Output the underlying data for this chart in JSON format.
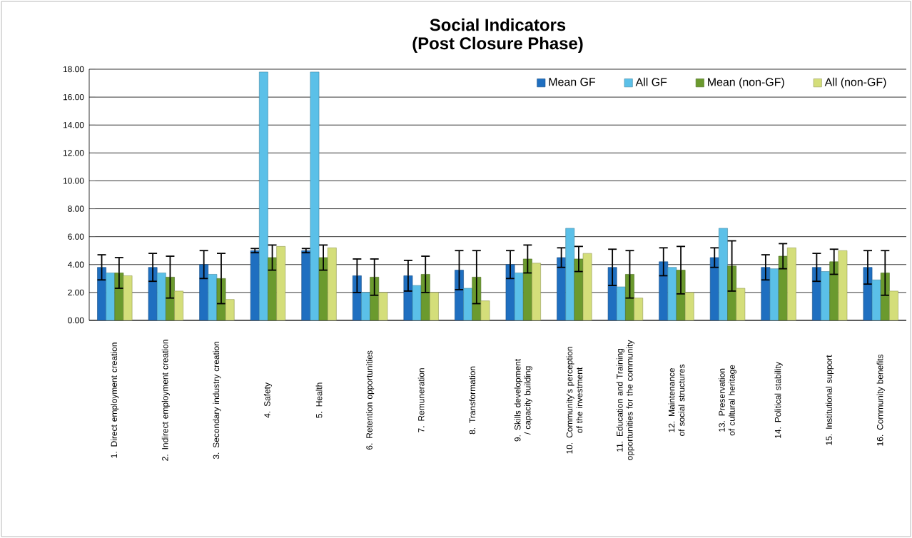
{
  "chart_data": {
    "type": "bar",
    "title": "Social Indicators\n(Post Closure Phase)",
    "categories": [
      "1. Direct employment creation",
      "2. Indirect employment creation",
      "3. Secondary industry creation",
      "4. Safety",
      "5. Health",
      "6. Retention opportunities",
      "7. Remuneration",
      "8. Transformation",
      "9. Skills development / capacity building",
      "10. Community's perception of the investment",
      "11. Education and Training opportunities for the community",
      "12. Maintenance of social structures",
      "13. Preservation of cultural heritage",
      "14. Political stability",
      "15. Institutional support",
      "16. Community benefits"
    ],
    "series": [
      {
        "name": "Mean GF",
        "color": "#1f6fc0",
        "values": [
          3.8,
          3.8,
          4.0,
          5.0,
          5.0,
          3.2,
          3.2,
          3.6,
          4.0,
          4.5,
          3.8,
          4.2,
          4.5,
          3.8,
          3.8,
          3.8
        ],
        "errors": [
          0.9,
          1.0,
          1.0,
          0.15,
          0.15,
          1.2,
          1.1,
          1.4,
          1.0,
          0.7,
          1.3,
          1.0,
          0.7,
          0.9,
          1.0,
          1.2
        ]
      },
      {
        "name": "All GF",
        "color": "#5bc0e8",
        "values": [
          3.4,
          3.4,
          3.3,
          17.8,
          17.8,
          2.0,
          2.5,
          2.3,
          3.4,
          6.6,
          2.4,
          3.8,
          6.6,
          3.7,
          3.5,
          2.9
        ]
      },
      {
        "name": "Mean (non-GF)",
        "color": "#6b9a2e",
        "values": [
          3.4,
          3.1,
          3.0,
          4.5,
          4.5,
          3.1,
          3.3,
          3.1,
          4.4,
          4.4,
          3.3,
          3.6,
          3.9,
          4.6,
          4.2,
          3.4
        ],
        "errors": [
          1.1,
          1.5,
          1.8,
          0.9,
          0.9,
          1.3,
          1.3,
          1.9,
          1.0,
          0.9,
          1.7,
          1.7,
          1.8,
          0.9,
          0.9,
          1.6
        ]
      },
      {
        "name": "All (non-GF)",
        "color": "#d4de7a",
        "values": [
          3.2,
          2.1,
          1.5,
          5.3,
          5.2,
          2.0,
          2.0,
          1.4,
          4.1,
          4.8,
          1.6,
          2.0,
          2.3,
          5.2,
          5.0,
          2.1
        ]
      }
    ],
    "ylim": [
      0,
      18
    ],
    "yticks": [
      {
        "value": 0,
        "label": "0.00"
      },
      {
        "value": 2,
        "label": "2.00"
      },
      {
        "value": 4,
        "label": "4.00"
      },
      {
        "value": 6,
        "label": "6.00"
      },
      {
        "value": 8,
        "label": "8.00"
      },
      {
        "value": 10,
        "label": "10.00"
      },
      {
        "value": 12,
        "label": "12.00"
      },
      {
        "value": 14,
        "label": "14.00"
      },
      {
        "value": 16,
        "label": "16.00"
      },
      {
        "value": 18,
        "label": "18.00"
      }
    ],
    "grid": "y",
    "legend": "top right"
  }
}
